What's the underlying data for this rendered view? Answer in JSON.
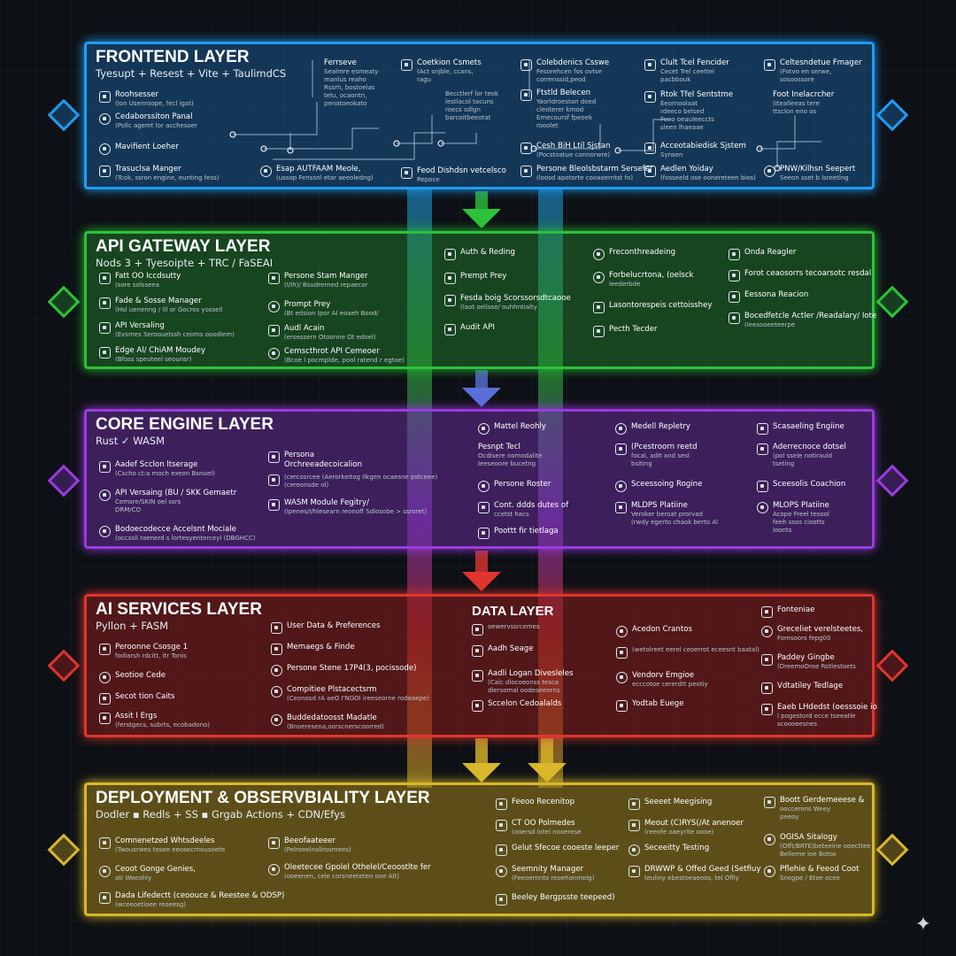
{
  "layers": [
    {
      "id": "frontend",
      "title": "FRONTEND LAYER",
      "subtitle": "Tyesupt + Resest + Vite + TaulimdCS",
      "color": "#1f9cf0",
      "components": [
        {
          "label": "Roohsesser",
          "sub": "(Ion Usenroope, fecl igat)"
        },
        {
          "label": "Cedaborssiton Panal",
          "sub": "(Pollc agemt lor acchesoer"
        },
        {
          "label": "Mavifient Loeher",
          "sub": ""
        },
        {
          "label": "Trasuclsa Manger",
          "sub": "(Tcok, ssron engine, eunting fess)"
        },
        {
          "label": "Ferrseve",
          "sub": "Sealmre esmeaty\nmanlus reaho\nRssrh, bostoelas\ntelu, ocaontn,\npenatoeokato"
        },
        {
          "label": "Coetkion Csmets",
          "sub": "(Act snjble, ccans,\nragu"
        },
        {
          "label": "Colebdenics Csswe",
          "sub": "Fesorehcen fos ovtse\ncorrenssid,peod"
        },
        {
          "label": "Clult Tcel Fencider",
          "sub": "Cecet Trel ceettel\npacbbouk"
        },
        {
          "label": "Celtesndetue Fmager",
          "sub": "(Fotvo en serwe,\nsosoossore"
        },
        {
          "label": "",
          "sub": "Becctlerf lor teok\nlestlacol tacuns\nroecs sdlgn\nbarcoitbeeotat"
        },
        {
          "label": "Ftstld Belecen",
          "sub": "Yaorldroestan doed\ncleoterer kmod\nEmecoursf fpeoek\nrooolet"
        },
        {
          "label": "Rtok Tfel Sentstme",
          "sub": "Eeornoolaat\nrdeeco belsed\nFeeo oeauleeccts\nsleen lhaeaae"
        },
        {
          "label": "Foot Inelacrcher",
          "sub": "(Itealleeas tere\nttsclon eno os"
        },
        {
          "label": "Cesh BiH Ltil Sjstan",
          "sub": "(Pocstoatue connorwre)"
        },
        {
          "label": "Acceotabiedisk Sjstem",
          "sub": "Synsen"
        },
        {
          "label": "Esap AUTFAAM Meole,",
          "sub": "(ussop Fenssnl etar aeeoledng)"
        },
        {
          "label": "Feod Dishdsn vetcelsco",
          "sub": "Repoce"
        },
        {
          "label": "Persone Bleolsbstarm Sersefer",
          "sub": "(loosd apotorte cooaoerntst fo)"
        },
        {
          "label": "Aedlen Yoiday",
          "sub": "(fosseeld ose oonereteen bios)"
        },
        {
          "label": "PNW/Kilhsn Seepert",
          "sub": "Seeon sset b lsreeting"
        }
      ]
    },
    {
      "id": "api",
      "title": "API GATEWAY LAYER",
      "subtitle": "Nods 3 + Tyesoipte + TRC / FaSEAI",
      "color": "#2cc23a",
      "components": [
        {
          "label": "Fatt OO Iccdsutty",
          "sub": "(sore solsseea"
        },
        {
          "label": "Fade & Sosse Manager",
          "sub": "(Hsl uenenng / Ill or Gocros yossell"
        },
        {
          "label": "API Versaling",
          "sub": "(Evsmes Seroouelssh ceoms ooodlem)"
        },
        {
          "label": "Edge Al/ ChiAM Moudey",
          "sub": "(Bfoss speuteel seounsr)"
        },
        {
          "label": "Persone Stam Manger",
          "sub": "(I/Ih)/ Bsudrerned repaecor"
        },
        {
          "label": "Prompt Prey",
          "sub": "(Bt edsion Ipor AI eoaeh Bood/"
        },
        {
          "label": "Audl Acain",
          "sub": "(ersessern Otoonne Ot edoel)"
        },
        {
          "label": "Cemscthrot API Cemeoer",
          "sub": "(Bcoe l pocmplde, pool ratend r egtoe)"
        },
        {
          "label": "Auth & Reding",
          "sub": ""
        },
        {
          "label": "Prempt Prey",
          "sub": ""
        },
        {
          "label": "Fesda boig Scorssorsdtcaooe",
          "sub": "(Iaot oelisse/ ouhhntialty"
        },
        {
          "label": "Audit API",
          "sub": ""
        },
        {
          "label": "Freconthreadeing",
          "sub": ""
        },
        {
          "label": "Forbelucrtona, (oelsck",
          "sub": "leederbde"
        },
        {
          "label": "Lasontorespeis cettoisshey",
          "sub": ""
        },
        {
          "label": "Pecth Tecder",
          "sub": ""
        },
        {
          "label": "Onda Reagler",
          "sub": ""
        },
        {
          "label": "Forot ceaosorrs tecoarsotc resdal",
          "sub": ""
        },
        {
          "label": "Eessona Reacion",
          "sub": ""
        },
        {
          "label": "Bocedfetcle Actler /Readalary/ Iote",
          "sub": "(Ieesooeeteerpe"
        }
      ]
    },
    {
      "id": "core",
      "title": "CORE ENGINE LAYER",
      "subtitle": "Rust ✓ WASM",
      "color": "#9a3be0",
      "components": [
        {
          "label": "Aadef Scclon ltserage",
          "sub": "(Cscho ct:a moch exeon Bsnuel)"
        },
        {
          "label": "API Versaing (BU / SKK Gemaetr",
          "sub": "Cemsre/SKIN oel ssrs\nDRM/CO"
        },
        {
          "label": "Bodoecodecce Accelsnt Mociale",
          "sub": "(occssil raenerd s lortesyenterceyl (DBGHCC)"
        },
        {
          "label": "Persona\nOrchreeadecoicalion",
          "sub": ""
        },
        {
          "label": "",
          "sub": "(cercosrcee (Aerorkeitog Ilkgen ocaesne pstceee)\n(cereonsde ol)"
        },
        {
          "label": "WASM Module Fegitry/",
          "sub": "(Ipenes/I/hlesearn reonoff Sdlosobe > ssroret)"
        },
        {
          "label": "Mattel Reohly",
          "sub": ""
        },
        {
          "label": "Pesnpt Tecl",
          "sub": "Ocdisere nomodalite\nIeeseoore bucetng"
        },
        {
          "label": "Persone Roster",
          "sub": ""
        },
        {
          "label": "Cont. ddds dutes of",
          "sub": "ccetst hacs"
        },
        {
          "label": "Poottt fir tietlaga",
          "sub": ""
        },
        {
          "label": "Medell Repletry",
          "sub": ""
        },
        {
          "label": "(Pcestroorn reetd",
          "sub": "focal, adit and sesl\nbsiting"
        },
        {
          "label": "Sceessoing Rogine",
          "sub": ""
        },
        {
          "label": "MLDPS Platiine",
          "sub": "Veroker beroat prorvad\n(rwdy egerto chaok berto Al"
        },
        {
          "label": "Scasaeling Engiine",
          "sub": ""
        },
        {
          "label": "Aderrecnoce dotsel",
          "sub": "(pol ssele notirauld\ntseting"
        },
        {
          "label": "Sceesolis Coachion",
          "sub": ""
        },
        {
          "label": "MLOPS Platiine",
          "sub": "Acope Freel tesool\nfeeh ssos ciootts\nloonts"
        }
      ]
    },
    {
      "id": "ai",
      "title": "AI SERVICES LAYER",
      "subtitle": "Pyllon + FASM",
      "color": "#e0352f",
      "components": [
        {
          "label": "Peroonne Csosge 1",
          "sub": "fodiarsh rdcitt, itr Tonis"
        },
        {
          "label": "Seotioe Cede",
          "sub": ""
        },
        {
          "label": "Secot tion Caits",
          "sub": ""
        },
        {
          "label": "Assit I Ergs",
          "sub": "(ferstgecs, subrts, ecobadono)"
        },
        {
          "label": "User Data & Preferences",
          "sub": ""
        },
        {
          "label": "Memaegs & Finde",
          "sub": ""
        },
        {
          "label": "Persone Stene 17P4(3, pocissode)",
          "sub": ""
        },
        {
          "label": "Compitiee Plstacectsrm",
          "sub": "(Ceonosd rA aeO I'NGOI ireeseorne rodeaepe)"
        },
        {
          "label": "Buddedatoosst Madatle",
          "sub": "(Bnoereseoa,oorscnerscoorred)"
        }
      ]
    },
    {
      "id": "data",
      "title": "DATA LAYER",
      "subtitle": "",
      "color": "#e0352f",
      "components": [
        {
          "label": "",
          "sub": "oewervssrcemes"
        },
        {
          "label": "Aadh Seage",
          "sub": ""
        },
        {
          "label": "Aadli Logan Divesleles",
          "sub": "(Calc dlocoeonss tesca\ndlersomal oodeseeorns"
        },
        {
          "label": "Sccelon Cedoalalds",
          "sub": ""
        },
        {
          "label": "Acedon Crantos",
          "sub": ""
        },
        {
          "label": "",
          "sub": "(wetolreet eerel ceoerrot eceesnt baatal)"
        },
        {
          "label": "Vendorv Emgioe",
          "sub": "ecccotoe cererdtt peotiy"
        },
        {
          "label": "Yodtab Euege",
          "sub": ""
        },
        {
          "label": "Fonteniae",
          "sub": ""
        },
        {
          "label": "Greceliet verelsteetes,",
          "sub": "Fomsoors fepg00"
        },
        {
          "label": "Paddey Gingbe",
          "sub": "(DreemoOroe Rotlestoets"
        },
        {
          "label": "Vdtatiley Tedlage",
          "sub": ""
        },
        {
          "label": "Eaeb LHdedst (oesssoie io",
          "sub": "l pogestord ecce tseeatle\nscoooeesnes"
        }
      ]
    },
    {
      "id": "deploy",
      "title": "DEPLOYMENT & OBSERVBIALITY LAYER",
      "subtitle": "Dodler ▪ Redls + SS ▪ Grgab Actions + CDN/Efys",
      "color": "#d9b72a",
      "components": [
        {
          "label": "Comnenetzed Whtsdeeles",
          "sub": "(Twousrwes tesee eeosecrnousoete"
        },
        {
          "label": "Ceoot Gonge Genies,",
          "sub": "ati Weeohly"
        },
        {
          "label": "Dada Lifedectt (ceoouce & Reestee & ODSP)",
          "sub": "(wceeoetioee reoeesg)"
        },
        {
          "label": "Beeofaateeer",
          "sub": "(Pelroeelnolirosmees)"
        },
        {
          "label": "Oleetecee Gpolel Othelel/Ceoostlte fer",
          "sub": "(ooeenen, cele corsneeteten ooe Alt)"
        },
        {
          "label": "Feeoo Recenitop",
          "sub": ""
        },
        {
          "label": "CT OO Polmedes",
          "sub": "(ooersd lotel nooerese"
        },
        {
          "label": "Gelut Sfecoe cooeste leeper",
          "sub": ""
        },
        {
          "label": "Seemnity Manager",
          "sub": "(Feeoernnto reoehonmelg)"
        },
        {
          "label": "Beeley Bergpsste teepeed)",
          "sub": ""
        },
        {
          "label": "Seeeet Meegising",
          "sub": ""
        },
        {
          "label": "Meout (C)RYS(/At anenoer",
          "sub": "(reeofe oaeyrlte oooe)"
        },
        {
          "label": "Seceeitty Testing",
          "sub": ""
        },
        {
          "label": "DRWWP & Offed Geed (Setfiuy",
          "sub": "teuliny ebestoeaeoos, tel Oflly"
        },
        {
          "label": "Boott Gerdemeeese &",
          "sub": "ooccerons Weey\npeeoy"
        },
        {
          "label": "OGISA Sitalogy",
          "sub": "(Offt/BRTE)beteeine ooecttee\nBellerne Ioe Botos"
        },
        {
          "label": "Pflehie & Feeod Coot",
          "sub": "Snogpe / Etoe ocee"
        }
      ]
    }
  ]
}
